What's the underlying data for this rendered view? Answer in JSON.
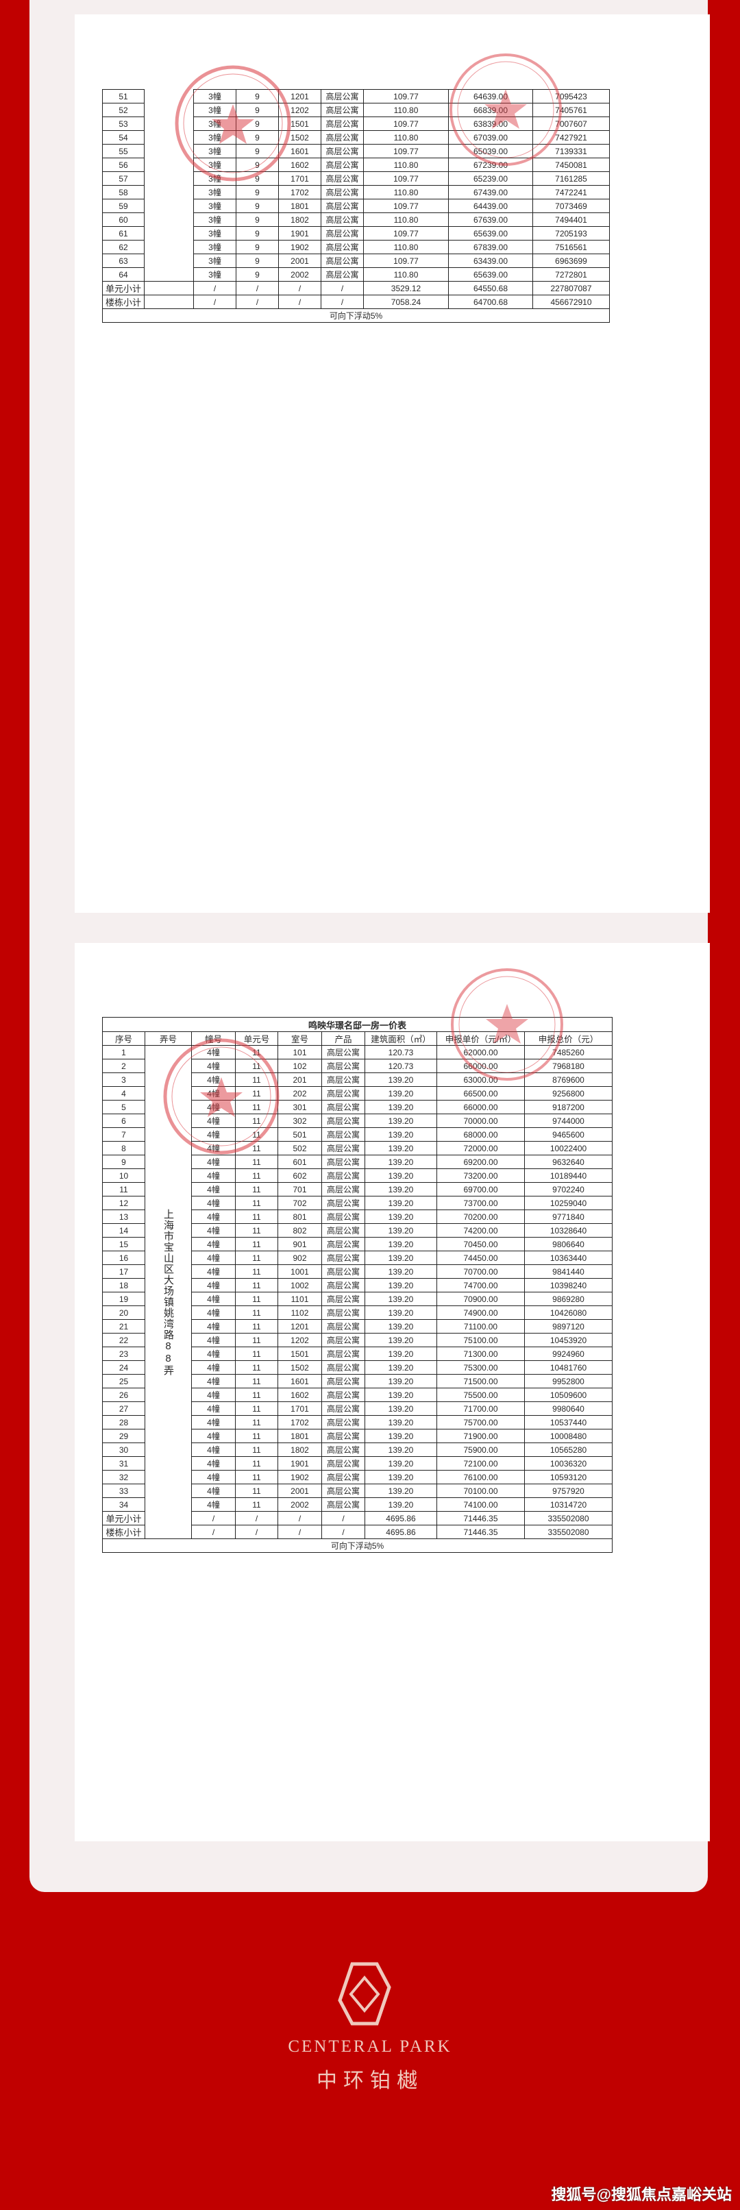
{
  "colors": {
    "background": "#c00000",
    "card": "#f5efef",
    "stamp": "#d9363e",
    "logo": "#f0c9bd"
  },
  "table1": {
    "rows": [
      [
        "51",
        "3幢",
        "9",
        "1201",
        "高层公寓",
        "109.77",
        "64639.00",
        "7095423"
      ],
      [
        "52",
        "3幢",
        "9",
        "1202",
        "高层公寓",
        "110.80",
        "66839.00",
        "7405761"
      ],
      [
        "53",
        "3幢",
        "9",
        "1501",
        "高层公寓",
        "109.77",
        "63839.00",
        "7007607"
      ],
      [
        "54",
        "3幢",
        "9",
        "1502",
        "高层公寓",
        "110.80",
        "67039.00",
        "7427921"
      ],
      [
        "55",
        "3幢",
        "9",
        "1601",
        "高层公寓",
        "109.77",
        "65039.00",
        "7139331"
      ],
      [
        "56",
        "3幢",
        "9",
        "1602",
        "高层公寓",
        "110.80",
        "67239.00",
        "7450081"
      ],
      [
        "57",
        "3幢",
        "9",
        "1701",
        "高层公寓",
        "109.77",
        "65239.00",
        "7161285"
      ],
      [
        "58",
        "3幢",
        "9",
        "1702",
        "高层公寓",
        "110.80",
        "67439.00",
        "7472241"
      ],
      [
        "59",
        "3幢",
        "9",
        "1801",
        "高层公寓",
        "109.77",
        "64439.00",
        "7073469"
      ],
      [
        "60",
        "3幢",
        "9",
        "1802",
        "高层公寓",
        "110.80",
        "67639.00",
        "7494401"
      ],
      [
        "61",
        "3幢",
        "9",
        "1901",
        "高层公寓",
        "109.77",
        "65639.00",
        "7205193"
      ],
      [
        "62",
        "3幢",
        "9",
        "1902",
        "高层公寓",
        "110.80",
        "67839.00",
        "7516561"
      ],
      [
        "63",
        "3幢",
        "9",
        "2001",
        "高层公寓",
        "109.77",
        "63439.00",
        "6963699"
      ],
      [
        "64",
        "3幢",
        "9",
        "2002",
        "高层公寓",
        "110.80",
        "65639.00",
        "7272801"
      ]
    ],
    "subtotals": [
      [
        "单元小计",
        "/",
        "/",
        "/",
        "/",
        "3529.12",
        "64550.68",
        "227807087"
      ],
      [
        "楼栋小计",
        "/",
        "/",
        "/",
        "/",
        "7058.24",
        "64700.68",
        "456672910"
      ]
    ],
    "note": "可向下浮动5%"
  },
  "table2": {
    "title": "鸣映华璟名邸一房一价表",
    "headers": [
      "序号",
      "弄号",
      "幢号",
      "单元号",
      "室号",
      "产品",
      "建筑面积（㎡）",
      "申报单价（元/㎡）",
      "申报总价（元）"
    ],
    "lane": "上海市宝山区大场镇姚湾路88弄",
    "rows": [
      [
        "1",
        "4幢",
        "11",
        "101",
        "高层公寓",
        "120.73",
        "62000.00",
        "7485260"
      ],
      [
        "2",
        "4幢",
        "11",
        "102",
        "高层公寓",
        "120.73",
        "66000.00",
        "7968180"
      ],
      [
        "3",
        "4幢",
        "11",
        "201",
        "高层公寓",
        "139.20",
        "63000.00",
        "8769600"
      ],
      [
        "4",
        "4幢",
        "11",
        "202",
        "高层公寓",
        "139.20",
        "66500.00",
        "9256800"
      ],
      [
        "5",
        "4幢",
        "11",
        "301",
        "高层公寓",
        "139.20",
        "66000.00",
        "9187200"
      ],
      [
        "6",
        "4幢",
        "11",
        "302",
        "高层公寓",
        "139.20",
        "70000.00",
        "9744000"
      ],
      [
        "7",
        "4幢",
        "11",
        "501",
        "高层公寓",
        "139.20",
        "68000.00",
        "9465600"
      ],
      [
        "8",
        "4幢",
        "11",
        "502",
        "高层公寓",
        "139.20",
        "72000.00",
        "10022400"
      ],
      [
        "9",
        "4幢",
        "11",
        "601",
        "高层公寓",
        "139.20",
        "69200.00",
        "9632640"
      ],
      [
        "10",
        "4幢",
        "11",
        "602",
        "高层公寓",
        "139.20",
        "73200.00",
        "10189440"
      ],
      [
        "11",
        "4幢",
        "11",
        "701",
        "高层公寓",
        "139.20",
        "69700.00",
        "9702240"
      ],
      [
        "12",
        "4幢",
        "11",
        "702",
        "高层公寓",
        "139.20",
        "73700.00",
        "10259040"
      ],
      [
        "13",
        "4幢",
        "11",
        "801",
        "高层公寓",
        "139.20",
        "70200.00",
        "9771840"
      ],
      [
        "14",
        "4幢",
        "11",
        "802",
        "高层公寓",
        "139.20",
        "74200.00",
        "10328640"
      ],
      [
        "15",
        "4幢",
        "11",
        "901",
        "高层公寓",
        "139.20",
        "70450.00",
        "9806640"
      ],
      [
        "16",
        "4幢",
        "11",
        "902",
        "高层公寓",
        "139.20",
        "74450.00",
        "10363440"
      ],
      [
        "17",
        "4幢",
        "11",
        "1001",
        "高层公寓",
        "139.20",
        "70700.00",
        "9841440"
      ],
      [
        "18",
        "4幢",
        "11",
        "1002",
        "高层公寓",
        "139.20",
        "74700.00",
        "10398240"
      ],
      [
        "19",
        "4幢",
        "11",
        "1101",
        "高层公寓",
        "139.20",
        "70900.00",
        "9869280"
      ],
      [
        "20",
        "4幢",
        "11",
        "1102",
        "高层公寓",
        "139.20",
        "74900.00",
        "10426080"
      ],
      [
        "21",
        "4幢",
        "11",
        "1201",
        "高层公寓",
        "139.20",
        "71100.00",
        "9897120"
      ],
      [
        "22",
        "4幢",
        "11",
        "1202",
        "高层公寓",
        "139.20",
        "75100.00",
        "10453920"
      ],
      [
        "23",
        "4幢",
        "11",
        "1501",
        "高层公寓",
        "139.20",
        "71300.00",
        "9924960"
      ],
      [
        "24",
        "4幢",
        "11",
        "1502",
        "高层公寓",
        "139.20",
        "75300.00",
        "10481760"
      ],
      [
        "25",
        "4幢",
        "11",
        "1601",
        "高层公寓",
        "139.20",
        "71500.00",
        "9952800"
      ],
      [
        "26",
        "4幢",
        "11",
        "1602",
        "高层公寓",
        "139.20",
        "75500.00",
        "10509600"
      ],
      [
        "27",
        "4幢",
        "11",
        "1701",
        "高层公寓",
        "139.20",
        "71700.00",
        "9980640"
      ],
      [
        "28",
        "4幢",
        "11",
        "1702",
        "高层公寓",
        "139.20",
        "75700.00",
        "10537440"
      ],
      [
        "29",
        "4幢",
        "11",
        "1801",
        "高层公寓",
        "139.20",
        "71900.00",
        "10008480"
      ],
      [
        "30",
        "4幢",
        "11",
        "1802",
        "高层公寓",
        "139.20",
        "75900.00",
        "10565280"
      ],
      [
        "31",
        "4幢",
        "11",
        "1901",
        "高层公寓",
        "139.20",
        "72100.00",
        "10036320"
      ],
      [
        "32",
        "4幢",
        "11",
        "1902",
        "高层公寓",
        "139.20",
        "76100.00",
        "10593120"
      ],
      [
        "33",
        "4幢",
        "11",
        "2001",
        "高层公寓",
        "139.20",
        "70100.00",
        "9757920"
      ],
      [
        "34",
        "4幢",
        "11",
        "2002",
        "高层公寓",
        "139.20",
        "74100.00",
        "10314720"
      ]
    ],
    "subtotals": [
      [
        "单元小计",
        "/",
        "/",
        "/",
        "/",
        "4695.86",
        "71446.35",
        "335502080"
      ],
      [
        "楼栋小计",
        "/",
        "/",
        "/",
        "/",
        "4695.86",
        "71446.35",
        "335502080"
      ]
    ],
    "note": "可向下浮动5%"
  },
  "footer": {
    "brand_en": "CENTERAL PARK",
    "brand_cn": "中环铂樾",
    "watermark": "搜狐号@搜狐焦点嘉峪关站"
  }
}
